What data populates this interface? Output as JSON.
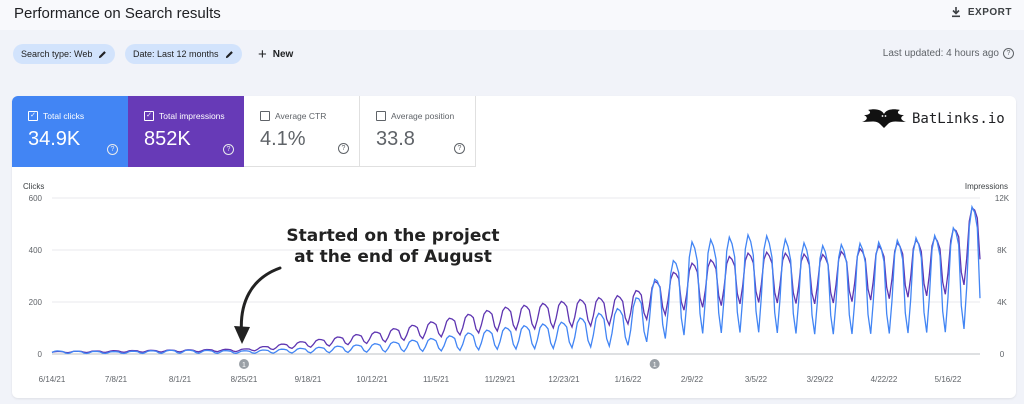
{
  "header": {
    "title": "Performance on Search results",
    "export_label": "EXPORT"
  },
  "filters": {
    "search_type": "Search type: Web",
    "date": "Date: Last 12 months",
    "new_label": "New",
    "last_updated": "Last updated: 4 hours ago"
  },
  "metrics": [
    {
      "label": "Total clicks",
      "value": "34.9K",
      "checked": true,
      "color": "#4285f4"
    },
    {
      "label": "Total impressions",
      "value": "852K",
      "checked": true,
      "color": "#673ab7"
    },
    {
      "label": "Average CTR",
      "value": "4.1%",
      "checked": false
    },
    {
      "label": "Average position",
      "value": "33.8",
      "checked": false
    }
  ],
  "brand": {
    "text": "BatLinks.io"
  },
  "annotation": {
    "line1": "Started on the project",
    "line2": "at the end of August"
  },
  "colors": {
    "clicks": "#4285f4",
    "impressions": "#5e35b1",
    "selected_clicks_bg": "#4285f4",
    "selected_impressions_bg": "#673ab7"
  },
  "chart_data": {
    "type": "line",
    "left_axis": {
      "label": "Clicks",
      "ticks": [
        0,
        200,
        400,
        600
      ],
      "ylim": [
        0,
        600
      ]
    },
    "right_axis": {
      "label": "Impressions",
      "ticks": [
        "0",
        "4K",
        "8K",
        "12K"
      ],
      "ylim": [
        0,
        12000
      ]
    },
    "x_ticks": [
      "6/14/21",
      "7/8/21",
      "8/1/21",
      "8/25/21",
      "9/18/21",
      "10/12/21",
      "11/5/21",
      "11/29/21",
      "12/23/21",
      "1/16/22",
      "2/9/22",
      "3/5/22",
      "3/29/22",
      "4/22/22",
      "5/16/22"
    ],
    "grid": true,
    "series": [
      {
        "name": "Clicks",
        "axis": "left",
        "x": [
          "6/14/21",
          "7/8/21",
          "8/1/21",
          "8/25/21",
          "9/18/21",
          "10/12/21",
          "11/5/21",
          "11/29/21",
          "12/23/21",
          "1/16/22",
          "2/9/22",
          "3/5/22",
          "3/29/22",
          "4/22/22",
          "5/16/22",
          "5/28/22"
        ],
        "values": [
          8,
          6,
          10,
          8,
          15,
          25,
          40,
          65,
          80,
          120,
          280,
          300,
          270,
          280,
          300,
          390
        ]
      },
      {
        "name": "Impressions",
        "axis": "right",
        "x": [
          "6/14/21",
          "7/8/21",
          "8/1/21",
          "8/25/21",
          "9/18/21",
          "10/12/21",
          "11/5/21",
          "11/29/21",
          "12/23/21",
          "1/16/22",
          "2/9/22",
          "3/5/22",
          "3/29/22",
          "4/22/22",
          "5/16/22",
          "5/28/22"
        ],
        "values": [
          150,
          200,
          250,
          300,
          800,
          1300,
          2000,
          2800,
          3200,
          3600,
          5500,
          6200,
          6000,
          6600,
          7200,
          9400
        ]
      }
    ],
    "markers": [
      {
        "x": "8/25/21",
        "label": "1"
      },
      {
        "x": "1/26/22",
        "label": "1"
      }
    ]
  }
}
